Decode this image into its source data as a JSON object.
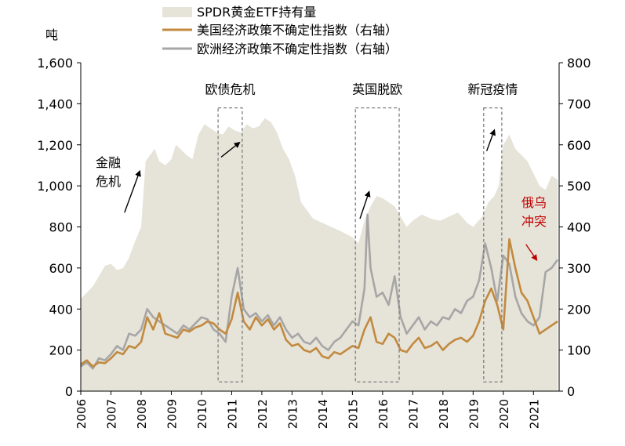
{
  "chart_data": {
    "type": "area",
    "left_axis": {
      "unit_label": "吨",
      "ylim": [
        0,
        1600
      ],
      "ticks": [
        "0",
        "200",
        "400",
        "600",
        "800",
        "1,000",
        "1,200",
        "1,400",
        "1,600"
      ]
    },
    "right_axis": {
      "ylim": [
        0,
        800
      ],
      "ticks": [
        "0",
        "100",
        "200",
        "300",
        "400",
        "500",
        "600",
        "700",
        "800"
      ]
    },
    "x_ticks": [
      "2006",
      "2007",
      "2008",
      "2009",
      "2010",
      "2011",
      "2012",
      "2013",
      "2014",
      "2015",
      "2016",
      "2017",
      "2018",
      "2019",
      "2020",
      "2021"
    ],
    "xlim": [
      2006,
      2021.85
    ],
    "legend": {
      "placement": "top",
      "entries": [
        {
          "label": "SPDR黄金ETF持有量",
          "color": "#e6e3d9",
          "style": "area"
        },
        {
          "label": "美国经济政策不确定性指数（右轴）",
          "color": "#c28a3f",
          "style": "line"
        },
        {
          "label": "欧洲经济政策不确定性指数（右轴）",
          "color": "#a6a6a6",
          "style": "line"
        }
      ]
    },
    "series": [
      {
        "name": "SPDR黄金ETF持有量",
        "axis": "left",
        "x": [
          2006.0,
          2006.2,
          2006.4,
          2006.6,
          2006.8,
          2007.0,
          2007.2,
          2007.4,
          2007.6,
          2007.8,
          2008.0,
          2008.15,
          2008.3,
          2008.45,
          2008.6,
          2008.8,
          2009.0,
          2009.15,
          2009.3,
          2009.5,
          2009.7,
          2009.9,
          2010.1,
          2010.3,
          2010.5,
          2010.7,
          2010.9,
          2011.1,
          2011.3,
          2011.5,
          2011.7,
          2011.9,
          2012.1,
          2012.3,
          2012.5,
          2012.7,
          2012.9,
          2013.1,
          2013.3,
          2013.5,
          2013.7,
          2014.0,
          2014.3,
          2014.6,
          2015.0,
          2015.2,
          2015.4,
          2015.6,
          2015.8,
          2016.0,
          2016.2,
          2016.4,
          2016.6,
          2016.8,
          2017.0,
          2017.3,
          2017.6,
          2017.9,
          2018.2,
          2018.5,
          2018.8,
          2019.0,
          2019.3,
          2019.5,
          2019.7,
          2019.85,
          2020.0,
          2020.2,
          2020.4,
          2020.6,
          2020.8,
          2021.0,
          2021.2,
          2021.4,
          2021.6,
          2021.8
        ],
        "values": [
          450,
          480,
          510,
          560,
          610,
          620,
          590,
          600,
          650,
          730,
          800,
          1120,
          1150,
          1180,
          1120,
          1100,
          1130,
          1200,
          1180,
          1150,
          1130,
          1250,
          1300,
          1280,
          1260,
          1250,
          1290,
          1270,
          1260,
          1300,
          1280,
          1290,
          1330,
          1310,
          1260,
          1180,
          1130,
          1050,
          920,
          880,
          840,
          820,
          800,
          780,
          750,
          720,
          830,
          900,
          950,
          940,
          920,
          900,
          850,
          800,
          830,
          860,
          840,
          830,
          850,
          870,
          820,
          800,
          850,
          920,
          950,
          1000,
          1200,
          1250,
          1180,
          1150,
          1120,
          1060,
          1000,
          980,
          1050,
          1030
        ]
      },
      {
        "name": "美国经济政策不确定性指数（右轴）",
        "axis": "right",
        "x": [
          2006.0,
          2006.2,
          2006.4,
          2006.6,
          2006.8,
          2007.0,
          2007.2,
          2007.4,
          2007.6,
          2007.8,
          2008.0,
          2008.2,
          2008.4,
          2008.6,
          2008.8,
          2009.0,
          2009.2,
          2009.4,
          2009.6,
          2009.8,
          2010.0,
          2010.2,
          2010.4,
          2010.6,
          2010.8,
          2011.0,
          2011.2,
          2011.4,
          2011.6,
          2011.8,
          2012.0,
          2012.2,
          2012.4,
          2012.6,
          2012.8,
          2013.0,
          2013.2,
          2013.4,
          2013.6,
          2013.8,
          2014.0,
          2014.2,
          2014.4,
          2014.6,
          2014.8,
          2015.0,
          2015.2,
          2015.4,
          2015.6,
          2015.8,
          2016.0,
          2016.2,
          2016.4,
          2016.6,
          2016.8,
          2017.0,
          2017.2,
          2017.4,
          2017.6,
          2017.8,
          2018.0,
          2018.2,
          2018.4,
          2018.6,
          2018.8,
          2019.0,
          2019.2,
          2019.4,
          2019.6,
          2019.8,
          2020.0,
          2020.2,
          2020.4,
          2020.6,
          2020.8,
          2021.0,
          2021.2,
          2021.4,
          2021.6,
          2021.8
        ],
        "values": [
          65,
          75,
          60,
          70,
          68,
          80,
          95,
          90,
          110,
          105,
          120,
          180,
          150,
          190,
          140,
          135,
          130,
          150,
          145,
          155,
          160,
          170,
          165,
          150,
          140,
          175,
          240,
          170,
          150,
          180,
          160,
          175,
          150,
          165,
          125,
          110,
          115,
          100,
          95,
          105,
          85,
          80,
          95,
          90,
          100,
          110,
          105,
          150,
          180,
          120,
          115,
          140,
          130,
          100,
          95,
          115,
          130,
          105,
          110,
          120,
          100,
          115,
          125,
          130,
          120,
          135,
          170,
          220,
          250,
          210,
          150,
          370,
          300,
          240,
          220,
          180,
          140,
          150,
          160,
          170
        ]
      },
      {
        "name": "欧洲经济政策不确定性指数（右轴）",
        "axis": "right",
        "x": [
          2006.0,
          2006.2,
          2006.4,
          2006.6,
          2006.8,
          2007.0,
          2007.2,
          2007.4,
          2007.6,
          2007.8,
          2008.0,
          2008.2,
          2008.4,
          2008.6,
          2008.8,
          2009.0,
          2009.2,
          2009.4,
          2009.6,
          2009.8,
          2010.0,
          2010.2,
          2010.4,
          2010.6,
          2010.8,
          2011.0,
          2011.2,
          2011.4,
          2011.6,
          2011.8,
          2012.0,
          2012.2,
          2012.4,
          2012.6,
          2012.8,
          2013.0,
          2013.2,
          2013.4,
          2013.6,
          2013.8,
          2014.0,
          2014.2,
          2014.4,
          2014.6,
          2014.8,
          2015.0,
          2015.2,
          2015.4,
          2015.5,
          2015.6,
          2015.8,
          2016.0,
          2016.2,
          2016.4,
          2016.6,
          2016.8,
          2017.0,
          2017.2,
          2017.4,
          2017.6,
          2017.8,
          2018.0,
          2018.2,
          2018.4,
          2018.6,
          2018.8,
          2019.0,
          2019.2,
          2019.4,
          2019.6,
          2019.8,
          2020.0,
          2020.2,
          2020.4,
          2020.6,
          2020.8,
          2021.0,
          2021.2,
          2021.4,
          2021.6,
          2021.8
        ],
        "values": [
          60,
          70,
          55,
          80,
          75,
          90,
          110,
          100,
          140,
          135,
          150,
          200,
          180,
          170,
          160,
          150,
          140,
          160,
          150,
          165,
          180,
          175,
          150,
          140,
          120,
          230,
          300,
          200,
          180,
          190,
          170,
          185,
          160,
          180,
          150,
          130,
          140,
          120,
          115,
          130,
          110,
          100,
          120,
          130,
          150,
          170,
          160,
          250,
          430,
          300,
          230,
          240,
          210,
          280,
          180,
          140,
          160,
          180,
          150,
          170,
          160,
          180,
          175,
          200,
          190,
          220,
          230,
          270,
          360,
          300,
          220,
          330,
          310,
          230,
          190,
          170,
          160,
          180,
          290,
          300,
          320
        ]
      }
    ],
    "annotations": {
      "event_boxes": [
        {
          "label": "欧债危机",
          "x_start": 2010.55,
          "x_end": 2011.35,
          "y_top": 1380,
          "y_bottom": 45
        },
        {
          "label": "英国脱欧",
          "x_start": 2015.1,
          "x_end": 2016.55,
          "y_top": 1380,
          "y_bottom": 45
        },
        {
          "label": "新冠疫情",
          "x_start": 2019.35,
          "x_end": 2019.95,
          "y_top": 1380,
          "y_bottom": 45
        }
      ],
      "texts": [
        {
          "lines": [
            "金融",
            "危机"
          ],
          "color": "#000000"
        },
        {
          "lines": [
            "俄乌",
            "冲突"
          ],
          "color": "#c00000"
        }
      ],
      "arrows": [
        {
          "from": [
            2007.45,
            870
          ],
          "to": [
            2007.95,
            1070
          ],
          "color": "#000000"
        },
        {
          "from": [
            2010.65,
            1140
          ],
          "to": [
            2011.25,
            1210
          ],
          "color": "#000000"
        },
        {
          "from": [
            2015.25,
            840
          ],
          "to": [
            2015.55,
            970
          ],
          "color": "#000000"
        },
        {
          "from": [
            2019.45,
            1170
          ],
          "to": [
            2019.7,
            1270
          ],
          "color": "#000000"
        },
        {
          "from": [
            2020.75,
            715
          ],
          "to": [
            2021.1,
            640
          ],
          "color": "#c00000"
        }
      ]
    }
  }
}
